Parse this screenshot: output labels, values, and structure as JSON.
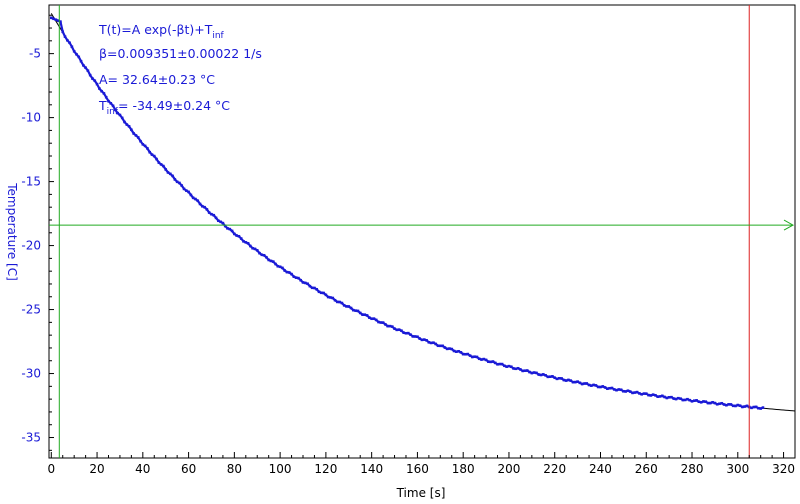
{
  "chart_data": {
    "type": "scatter",
    "xlabel": "Time [s]",
    "ylabel": "Temperature [C]",
    "xlim": [
      -1,
      325
    ],
    "ylim": [
      -36.6,
      -1.2
    ],
    "xticks": [
      0,
      20,
      40,
      60,
      80,
      100,
      120,
      140,
      160,
      180,
      200,
      220,
      240,
      260,
      280,
      300,
      320
    ],
    "yticks": [
      -5,
      -10,
      -15,
      -20,
      -25,
      -30,
      -35
    ],
    "x_tick_labels": [
      "0",
      "20",
      "40",
      "60",
      "80",
      "100",
      "120",
      "140",
      "160",
      "180",
      "200",
      "220",
      "240",
      "260",
      "280",
      "300",
      "320"
    ],
    "y_tick_labels": [
      "-5",
      "-10",
      "-15",
      "-20",
      "-25",
      "-30",
      "-35"
    ],
    "grid": false,
    "fit": {
      "model": "exponential",
      "A": 32.64,
      "beta": 0.009351,
      "T_inf": -34.49,
      "x_range": [
        0,
        325
      ],
      "color": "#000000"
    },
    "measurement_series": {
      "color": "#1a1ad6",
      "x_start": 0,
      "x_end": 311,
      "x_step": 1,
      "note_start_plateau": [
        [
          0,
          -2.2
        ],
        [
          4,
          -2.5
        ]
      ]
    },
    "annotations": {
      "line1_main": "T(t)=A exp(-βt)+T",
      "line1_sub": "inf",
      "line2": "β=0.009351±0.00022 1/s",
      "line3": "A= 32.64±0.23 °C",
      "line4_prefix": "T",
      "line4_sub": "inf",
      "line4_rest": "= -34.49±0.24 °C"
    },
    "cursors": {
      "vertical_green_x": 3.5,
      "vertical_red_x": 305,
      "horizontal_green_y": -18.4,
      "green_color": "#22aa22",
      "red_color": "#dd2222"
    }
  }
}
